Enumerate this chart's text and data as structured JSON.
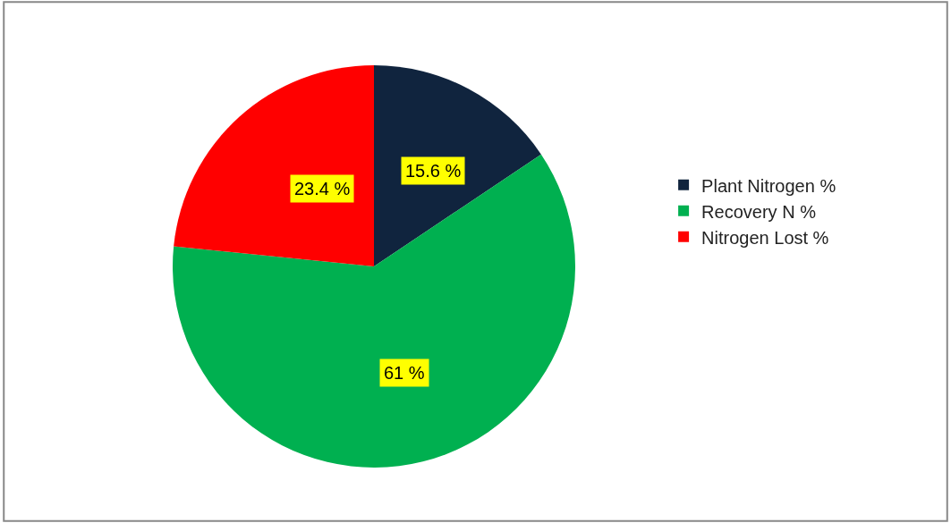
{
  "chart_data": {
    "type": "pie",
    "categories": [
      "Plant Nitrogen %",
      "Recovery N %",
      "Nitrogen Lost %"
    ],
    "values": [
      15.6,
      61,
      23.4
    ],
    "value_labels": [
      "15.6 %",
      "61 %",
      "23.4 %"
    ],
    "colors": [
      "#10243e",
      "#00b050",
      "#ff0000"
    ],
    "legend": "right"
  }
}
